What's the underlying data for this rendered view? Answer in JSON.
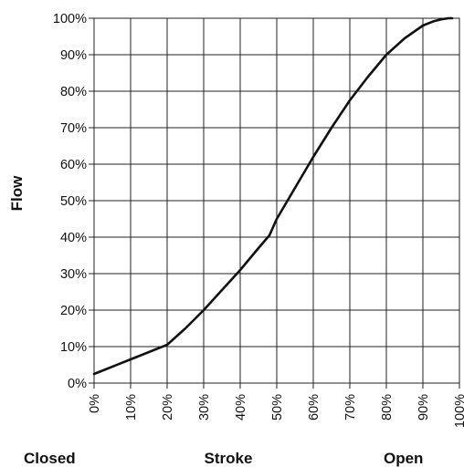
{
  "chart_data": {
    "type": "line",
    "title": "",
    "xlabel": "Stroke",
    "ylabel": "Flow",
    "xlim": [
      0,
      100
    ],
    "ylim": [
      0,
      100
    ],
    "grid": true,
    "x_ticks": [
      "0%",
      "10%",
      "20%",
      "30%",
      "40%",
      "50%",
      "60%",
      "70%",
      "80%",
      "90%",
      "100%"
    ],
    "y_ticks": [
      "0%",
      "10%",
      "20%",
      "30%",
      "40%",
      "50%",
      "60%",
      "70%",
      "80%",
      "90%",
      "100%"
    ],
    "x_annotations": {
      "left": "Closed",
      "right": "Open"
    },
    "series": [
      {
        "x": [
          0,
          5,
          10,
          15,
          20,
          25,
          30,
          35,
          40,
          45,
          48,
          50,
          55,
          60,
          65,
          70,
          75,
          80,
          85,
          90,
          93,
          95,
          97,
          98
        ],
        "y": [
          2.5,
          4.5,
          6.5,
          8.5,
          10.5,
          15,
          20,
          25.5,
          31,
          37,
          40.5,
          45,
          53.5,
          62,
          70,
          77.5,
          84,
          90,
          94.5,
          98,
          99.2,
          99.7,
          100,
          100
        ]
      }
    ]
  }
}
